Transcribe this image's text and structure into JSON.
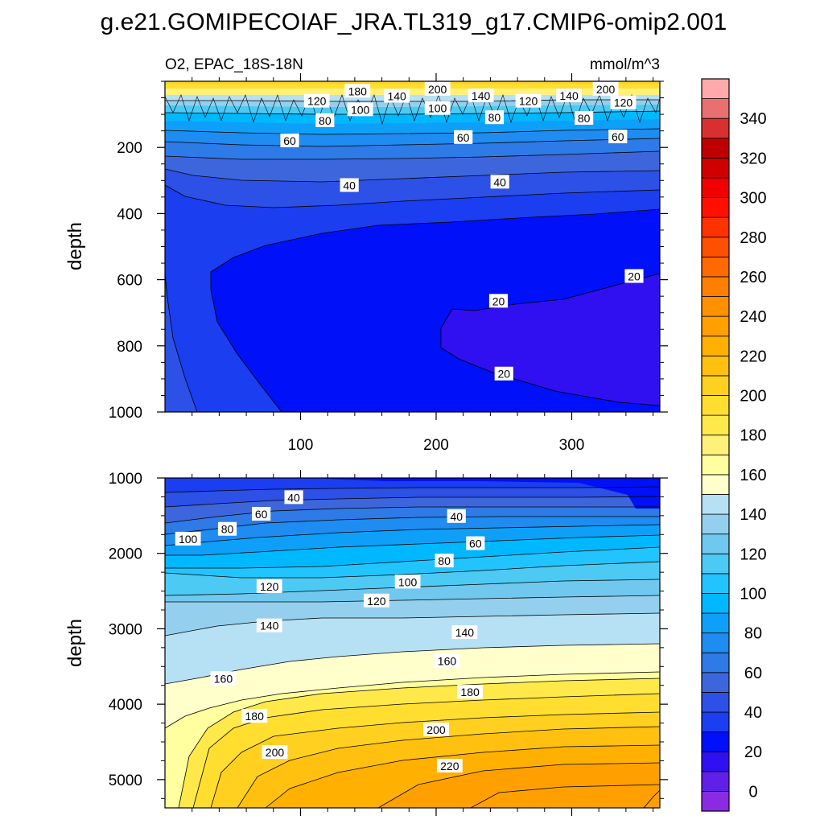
{
  "chart_data": {
    "type": "heatmap",
    "title": "g.e21.GOMIPECOIAF_JRA.TL319_g17.CMIP6-omip2.001",
    "subtitle_left": "O2, EPAC_18S-18N",
    "units": "mmol/m^3",
    "ylabel": "depth",
    "colorbar": {
      "levels": [
        -10,
        0,
        10,
        20,
        30,
        40,
        50,
        60,
        70,
        80,
        90,
        100,
        110,
        120,
        130,
        140,
        150,
        160,
        170,
        180,
        190,
        200,
        210,
        220,
        230,
        240,
        250,
        260,
        270,
        280,
        290,
        300,
        310,
        320,
        330,
        340,
        350,
        360
      ],
      "tick_labels": [
        "0",
        "20",
        "40",
        "60",
        "80",
        "100",
        "120",
        "140",
        "160",
        "180",
        "200",
        "220",
        "240",
        "260",
        "280",
        "300",
        "320",
        "340"
      ],
      "colors": [
        "#8a2be2",
        "#6020e8",
        "#3010f0",
        "#0010f8",
        "#1a3ef0",
        "#2d50e6",
        "#3e66dc",
        "#2e7ae6",
        "#1e8cf0",
        "#0ea0f8",
        "#00b8ff",
        "#22c4ff",
        "#4ccaf4",
        "#70c8ee",
        "#94d0ee",
        "#b6e0f4",
        "#ffffcc",
        "#ffffa0",
        "#fff07a",
        "#ffe84a",
        "#ffde30",
        "#ffd020",
        "#ffc010",
        "#ffb000",
        "#ffa000",
        "#ff9000",
        "#ff8000",
        "#ff6a00",
        "#ff5000",
        "#ff3200",
        "#ff1000",
        "#f00000",
        "#d00000",
        "#c00000",
        "#d83030",
        "#e87070",
        "#ffaaaa"
      ]
    },
    "panels": [
      {
        "name": "upper",
        "xlim": [
          0,
          365
        ],
        "ylim": [
          1000,
          0
        ],
        "x_ticks": [
          100,
          200,
          300
        ],
        "x_tick_labels": [
          "100",
          "200",
          "300"
        ],
        "y_ticks": [
          200,
          400,
          600,
          800,
          1000
        ],
        "y_tick_labels": [
          "200",
          "400",
          "600",
          "800",
          "1000"
        ],
        "contour_labels": [
          {
            "text": "180",
            "x": 142,
            "y": 30
          },
          {
            "text": "200",
            "x": 201,
            "y": 24
          },
          {
            "text": "200",
            "x": 325,
            "y": 24
          },
          {
            "text": "140",
            "x": 171,
            "y": 45
          },
          {
            "text": "140",
            "x": 233,
            "y": 44
          },
          {
            "text": "140",
            "x": 298,
            "y": 44
          },
          {
            "text": "120",
            "x": 112,
            "y": 60
          },
          {
            "text": "120",
            "x": 268,
            "y": 60
          },
          {
            "text": "120",
            "x": 338,
            "y": 65
          },
          {
            "text": "100",
            "x": 144,
            "y": 86
          },
          {
            "text": "100",
            "x": 201,
            "y": 82
          },
          {
            "text": "80",
            "x": 118,
            "y": 119
          },
          {
            "text": "80",
            "x": 243,
            "y": 110
          },
          {
            "text": "80",
            "x": 309,
            "y": 112
          },
          {
            "text": "60",
            "x": 92,
            "y": 180
          },
          {
            "text": "60",
            "x": 220,
            "y": 170
          },
          {
            "text": "60",
            "x": 334,
            "y": 168
          },
          {
            "text": "40",
            "x": 136,
            "y": 315
          },
          {
            "text": "40",
            "x": 247,
            "y": 305
          },
          {
            "text": "20",
            "x": 346,
            "y": 590
          },
          {
            "text": "20",
            "x": 246,
            "y": 665
          },
          {
            "text": "20",
            "x": 250,
            "y": 885
          }
        ]
      },
      {
        "name": "lower",
        "xlim": [
          0,
          365
        ],
        "ylim": [
          5375,
          1000
        ],
        "y_ticks": [
          1000,
          2000,
          3000,
          4000,
          5000
        ],
        "y_tick_labels": [
          "1000",
          "2000",
          "3000",
          "4000",
          "5000"
        ],
        "contour_labels": [
          {
            "text": "40",
            "x": 95,
            "y": 1260
          },
          {
            "text": "40",
            "x": 215,
            "y": 1510
          },
          {
            "text": "60",
            "x": 71,
            "y": 1480
          },
          {
            "text": "60",
            "x": 229,
            "y": 1870
          },
          {
            "text": "80",
            "x": 46,
            "y": 1680
          },
          {
            "text": "80",
            "x": 206,
            "y": 2100
          },
          {
            "text": "100",
            "x": 17,
            "y": 1810
          },
          {
            "text": "100",
            "x": 179,
            "y": 2380
          },
          {
            "text": "120",
            "x": 77,
            "y": 2440
          },
          {
            "text": "120",
            "x": 156,
            "y": 2630
          },
          {
            "text": "140",
            "x": 77,
            "y": 2960
          },
          {
            "text": "140",
            "x": 221,
            "y": 3050
          },
          {
            "text": "160",
            "x": 43,
            "y": 3660
          },
          {
            "text": "160",
            "x": 208,
            "y": 3430
          },
          {
            "text": "180",
            "x": 66,
            "y": 4160
          },
          {
            "text": "180",
            "x": 225,
            "y": 3840
          },
          {
            "text": "200",
            "x": 81,
            "y": 4640
          },
          {
            "text": "200",
            "x": 200,
            "y": 4340
          },
          {
            "text": "220",
            "x": 210,
            "y": 4820
          }
        ]
      }
    ]
  }
}
